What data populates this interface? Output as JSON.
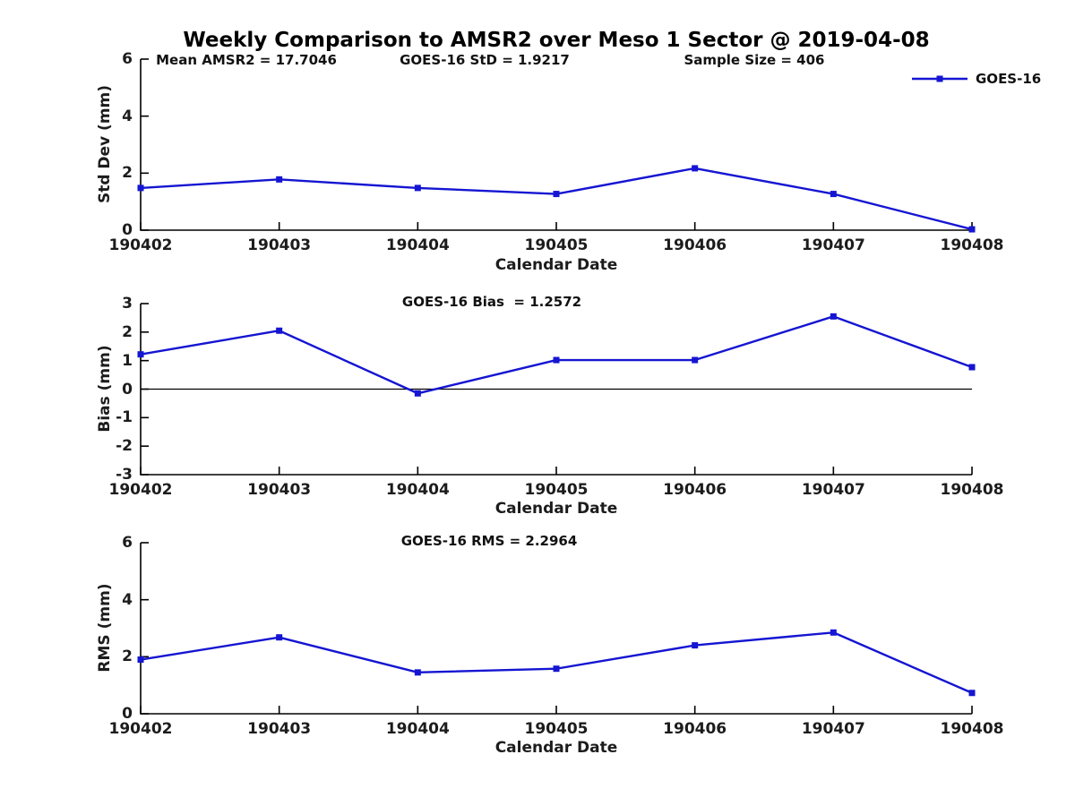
{
  "figure": {
    "title": "Weekly Comparison to AMSR2 over Meso 1 Sector @ 2019-04-08",
    "background_color": "#ffffff",
    "axis_color": "#000000",
    "text_color": "#111111"
  },
  "legend": {
    "label": "GOES-16",
    "color": "#1515d2",
    "marker": "square",
    "position": "top-right"
  },
  "annotations": {
    "mean_amsr2": "Mean AMSR2 = 17.7046",
    "goes16_std": "GOES-16 StD = 1.9217",
    "sample_size": "Sample Size = 406",
    "goes16_bias": "GOES-16 Bias  = 1.2572",
    "goes16_rms": "GOES-16 RMS = 2.2964"
  },
  "chart_data": [
    {
      "type": "line",
      "name": "stddev",
      "xlabel": "Calendar Date",
      "ylabel": "Std Dev (mm)",
      "categories": [
        "190402",
        "190403",
        "190404",
        "190405",
        "190406",
        "190407",
        "190408"
      ],
      "series": [
        {
          "name": "GOES-16",
          "color": "#1515d2",
          "marker": "square",
          "values": [
            1.48,
            1.78,
            1.48,
            1.27,
            2.17,
            1.27,
            0.03
          ]
        }
      ],
      "ylim": [
        0,
        6
      ],
      "yticks": [
        0,
        2,
        4,
        6
      ],
      "zero_line": false,
      "grid": false,
      "legend_position": "top-right-outside"
    },
    {
      "type": "line",
      "name": "bias",
      "xlabel": "Calendar Date",
      "ylabel": "Bias (mm)",
      "categories": [
        "190402",
        "190403",
        "190404",
        "190405",
        "190406",
        "190407",
        "190408"
      ],
      "series": [
        {
          "name": "GOES-16",
          "color": "#1515d2",
          "marker": "square",
          "values": [
            1.22,
            2.05,
            -0.15,
            1.02,
            1.02,
            2.55,
            0.77
          ]
        }
      ],
      "ylim": [
        -3,
        3
      ],
      "yticks": [
        -3,
        -2,
        -1,
        0,
        1,
        2,
        3
      ],
      "zero_line": true,
      "grid": false,
      "legend_position": "none"
    },
    {
      "type": "line",
      "name": "rms",
      "xlabel": "Calendar Date",
      "ylabel": "RMS (mm)",
      "categories": [
        "190402",
        "190403",
        "190404",
        "190405",
        "190406",
        "190407",
        "190408"
      ],
      "series": [
        {
          "name": "GOES-16",
          "color": "#1515d2",
          "marker": "square",
          "values": [
            1.9,
            2.68,
            1.45,
            1.58,
            2.4,
            2.85,
            0.73
          ]
        }
      ],
      "ylim": [
        0,
        6
      ],
      "yticks": [
        0,
        2,
        4,
        6
      ],
      "zero_line": false,
      "grid": false,
      "legend_position": "none"
    }
  ]
}
